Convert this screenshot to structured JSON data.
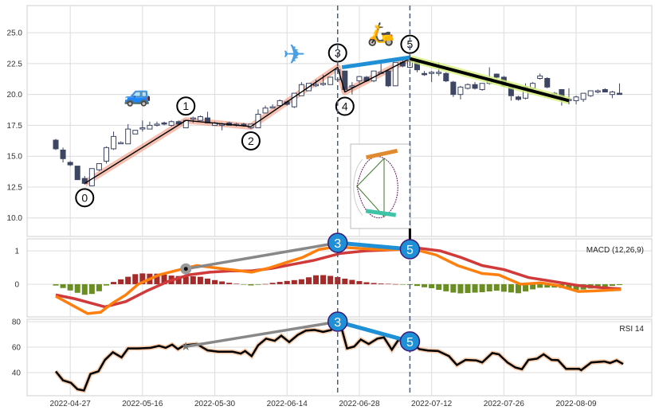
{
  "chart_data": {
    "type": "candlestick",
    "x_tick_labels": [
      {
        "index": 2,
        "label": "2022-04-27"
      },
      {
        "index": 12,
        "label": "2022-05-16"
      },
      {
        "index": 22,
        "label": "2022-05-30"
      },
      {
        "index": 32,
        "label": "2022-06-14"
      },
      {
        "index": 42,
        "label": "2022-06-28"
      },
      {
        "index": 52,
        "label": "2022-07-12"
      },
      {
        "index": 62,
        "label": "2022-07-26"
      },
      {
        "index": 72,
        "label": "2022-08-09"
      }
    ],
    "price_panel": {
      "ylim": [
        8.5,
        27.2
      ],
      "y_ticks": [
        "10.0",
        "12.5",
        "15.0",
        "17.5",
        "20.0",
        "22.5",
        "25.0"
      ],
      "candles_ohlc": [
        [
          16.3,
          16.4,
          15.5,
          15.6
        ],
        [
          15.5,
          15.7,
          14.5,
          14.8
        ],
        [
          14.5,
          14.6,
          14.2,
          14.3
        ],
        [
          14.2,
          14.2,
          13.1,
          13.1
        ],
        [
          13.2,
          13.4,
          12.7,
          12.8
        ],
        [
          12.6,
          14.0,
          12.6,
          14.0
        ],
        [
          13.9,
          14.4,
          13.8,
          14.4
        ],
        [
          14.6,
          15.8,
          14.4,
          15.7
        ],
        [
          15.6,
          17.0,
          15.5,
          16.6
        ],
        [
          16.1,
          16.2,
          16.0,
          16.1
        ],
        [
          16.0,
          17.6,
          16.0,
          17.2
        ],
        [
          16.8,
          17.1,
          16.8,
          17.1
        ],
        [
          17.3,
          17.9,
          17.0,
          17.3
        ],
        [
          17.2,
          17.8,
          17.2,
          17.5
        ],
        [
          17.6,
          17.8,
          17.4,
          17.6
        ],
        [
          17.7,
          17.8,
          17.5,
          17.6
        ],
        [
          17.5,
          17.9,
          17.4,
          17.8
        ],
        [
          17.8,
          17.9,
          17.6,
          17.6
        ],
        [
          17.3,
          17.9,
          17.3,
          17.9
        ],
        [
          18.1,
          18.2,
          17.7,
          18.1
        ],
        [
          17.9,
          18.3,
          17.9,
          18.2
        ],
        [
          18.1,
          18.6,
          17.7,
          17.7
        ],
        [
          17.5,
          17.8,
          17.5,
          17.7
        ],
        [
          17.6,
          17.7,
          17.1,
          17.6
        ],
        [
          17.7,
          17.8,
          17.5,
          17.5
        ],
        [
          17.6,
          17.7,
          17.4,
          17.6
        ],
        [
          17.6,
          17.7,
          17.4,
          17.5
        ],
        [
          17.3,
          17.6,
          17.2,
          17.6
        ],
        [
          17.3,
          18.8,
          17.3,
          18.4
        ],
        [
          18.5,
          19.1,
          18.5,
          18.9
        ],
        [
          19.0,
          19.2,
          18.9,
          19.0
        ],
        [
          19.1,
          19.6,
          19.0,
          19.5
        ],
        [
          19.4,
          19.5,
          19.1,
          19.2
        ],
        [
          19.0,
          20.1,
          18.9,
          20.1
        ],
        [
          19.9,
          21.0,
          19.9,
          20.8
        ],
        [
          20.3,
          20.9,
          20.3,
          20.9
        ],
        [
          20.8,
          21.2,
          20.6,
          20.8
        ],
        [
          20.8,
          21.6,
          20.7,
          20.9
        ],
        [
          20.8,
          21.4,
          20.8,
          21.4
        ],
        [
          21.2,
          22.0,
          21.1,
          22.0
        ],
        [
          21.9,
          21.9,
          20.3,
          20.4
        ],
        [
          20.7,
          21.0,
          20.0,
          20.7
        ],
        [
          21.1,
          21.5,
          20.9,
          21.45
        ],
        [
          21.4,
          21.5,
          21.0,
          21.1
        ],
        [
          21.1,
          21.9,
          21.0,
          21.9
        ],
        [
          21.8,
          22.6,
          21.7,
          21.8
        ],
        [
          21.9,
          22.0,
          20.6,
          20.7
        ],
        [
          20.7,
          22.6,
          20.7,
          22.6
        ],
        [
          22.6,
          22.8,
          22.2,
          22.3
        ],
        [
          22.2,
          23.3,
          22.1,
          22.7
        ],
        [
          22.6,
          22.7,
          21.8,
          22.0
        ],
        [
          21.7,
          21.9,
          21.5,
          21.6
        ],
        [
          21.8,
          21.9,
          21.0,
          21.8
        ],
        [
          21.8,
          22.6,
          21.5,
          21.8
        ],
        [
          21.7,
          21.8,
          21.0,
          21.1
        ],
        [
          21.0,
          21.1,
          19.8,
          20.0
        ],
        [
          20.0,
          20.7,
          19.6,
          20.6
        ],
        [
          20.5,
          20.9,
          20.4,
          20.8
        ],
        [
          20.8,
          21.0,
          20.4,
          20.5
        ],
        [
          20.4,
          20.9,
          20.3,
          20.9
        ],
        [
          20.9,
          22.2,
          20.8,
          21.3
        ],
        [
          21.65,
          21.7,
          21.3,
          21.4
        ],
        [
          21.4,
          21.5,
          20.6,
          20.7
        ],
        [
          20.6,
          20.7,
          19.5,
          19.9
        ],
        [
          19.8,
          19.9,
          19.5,
          19.6
        ],
        [
          19.7,
          20.9,
          19.6,
          20.6
        ],
        [
          20.5,
          21.0,
          20.4,
          20.9
        ],
        [
          21.3,
          21.7,
          21.2,
          21.5
        ],
        [
          21.3,
          21.4,
          20.5,
          20.6
        ],
        [
          20.1,
          20.2,
          19.8,
          20.1
        ],
        [
          20.4,
          20.4,
          19.1,
          19.8
        ],
        [
          19.6,
          20.5,
          19.2,
          19.6
        ],
        [
          19.5,
          19.9,
          19.2,
          19.8
        ],
        [
          19.6,
          20.1,
          19.4,
          20.1
        ],
        [
          19.9,
          20.3,
          19.8,
          20.3
        ],
        [
          20.2,
          20.4,
          20.1,
          20.3
        ],
        [
          20.4,
          20.5,
          20.2,
          20.2
        ],
        [
          20.0,
          20.3,
          19.7,
          20.2
        ],
        [
          20.1,
          20.9,
          20.0,
          20.0
        ]
      ],
      "pattern_points": [
        {
          "label": "0",
          "index": 4,
          "value": 12.8,
          "pos": "below"
        },
        {
          "label": "1",
          "index": 18,
          "value": 17.9,
          "pos": "above"
        },
        {
          "label": "2",
          "index": 27,
          "value": 17.4,
          "pos": "below"
        },
        {
          "label": "3",
          "index": 39,
          "value": 22.2,
          "pos": "above"
        },
        {
          "label": "4",
          "index": 40,
          "value": 20.2,
          "pos": "below"
        },
        {
          "label": "5",
          "index": 49,
          "value": 22.9,
          "pos": "above"
        }
      ],
      "highlight_segment": {
        "from": {
          "index": 39.6,
          "value": 22.2
        },
        "to": {
          "index": 49,
          "value": 23.0
        },
        "color": "#1f8fd6"
      },
      "trend_line": {
        "from": {
          "index": 49,
          "value": 22.9
        },
        "to": {
          "index": 71,
          "value": 19.5
        },
        "color": "#000000",
        "glow": "#d4f07a"
      },
      "stickers": [
        {
          "icon": "car-icon",
          "glyph": "🚙",
          "index": 11.3,
          "value": 19.4
        },
        {
          "icon": "airplane-icon",
          "glyph": "✈",
          "index": 33,
          "value": 22.5
        },
        {
          "icon": "scooter-icon",
          "glyph": "🛵",
          "index": 45,
          "value": 24.3
        }
      ],
      "vertical_markers": [
        39,
        49
      ]
    },
    "macd_panel": {
      "label": "MACD (12,26,9)",
      "ylim": [
        -0.98,
        1.36
      ],
      "y_ticks": [
        "0",
        "1"
      ],
      "macd": [
        [
          0,
          -0.36
        ],
        [
          2.7,
          -0.68
        ],
        [
          4.4,
          -0.88
        ],
        [
          6.2,
          -0.84
        ],
        [
          7.9,
          -0.56
        ],
        [
          9.7,
          -0.32
        ],
        [
          11.4,
          0
        ],
        [
          14.3,
          0.28
        ],
        [
          17.2,
          0.44
        ],
        [
          19.5,
          0.56
        ],
        [
          22.5,
          0.48
        ],
        [
          24.8,
          0.42
        ],
        [
          27.1,
          0.36
        ],
        [
          29.4,
          0.48
        ],
        [
          31.7,
          0.64
        ],
        [
          34.1,
          0.8
        ],
        [
          36.4,
          1.04
        ],
        [
          38.7,
          1.12
        ],
        [
          41.6,
          1.08
        ],
        [
          44.5,
          1.04
        ],
        [
          47.4,
          1.04
        ],
        [
          49.7,
          1.04
        ],
        [
          52.6,
          0.88
        ],
        [
          55.6,
          0.56
        ],
        [
          59,
          0.32
        ],
        [
          61.3,
          0.28
        ],
        [
          64.3,
          0
        ],
        [
          67.1,
          0.04
        ],
        [
          69.5,
          -0.04
        ],
        [
          72.3,
          -0.22
        ],
        [
          74.6,
          -0.2
        ],
        [
          78.2,
          -0.16
        ]
      ],
      "signal": [
        [
          0,
          -0.32
        ],
        [
          2.7,
          -0.44
        ],
        [
          6.8,
          -0.68
        ],
        [
          9.7,
          -0.52
        ],
        [
          12.6,
          -0.2
        ],
        [
          15.5,
          0.08
        ],
        [
          18.4,
          0.28
        ],
        [
          21.3,
          0.36
        ],
        [
          24.2,
          0.4
        ],
        [
          27.1,
          0.4
        ],
        [
          30,
          0.48
        ],
        [
          32.9,
          0.6
        ],
        [
          35.8,
          0.72
        ],
        [
          39.3,
          0.92
        ],
        [
          42.8,
          1.0
        ],
        [
          47.4,
          1.04
        ],
        [
          50.3,
          1.08
        ],
        [
          53.2,
          1.0
        ],
        [
          56.1,
          0.8
        ],
        [
          59,
          0.56
        ],
        [
          62,
          0.44
        ],
        [
          65.4,
          0.2
        ],
        [
          68.9,
          0.08
        ],
        [
          72.3,
          -0.04
        ],
        [
          75.3,
          -0.1
        ],
        [
          78.2,
          -0.14
        ]
      ],
      "colors": {
        "macd": "#ff7f0e",
        "signal": "#d03a3a",
        "hist_pos": "#a52a2a",
        "hist_neg": "#6b8e23"
      },
      "annotations": [
        {
          "label": "",
          "index": 18,
          "value": 0.46,
          "style": "gray-dot"
        },
        {
          "label": "3",
          "index": 39,
          "value": 1.24
        },
        {
          "label": "5",
          "index": 49,
          "value": 1.05
        }
      ]
    },
    "rsi_panel": {
      "label": "RSI 14",
      "ylim": [
        21.9,
        81.9
      ],
      "y_ticks": [
        "40",
        "60",
        "80"
      ],
      "rsi": [
        [
          0,
          41
        ],
        [
          1,
          34
        ],
        [
          2.1,
          32
        ],
        [
          3,
          27
        ],
        [
          3.9,
          26
        ],
        [
          4.8,
          39
        ],
        [
          5.9,
          41
        ],
        [
          6.8,
          50
        ],
        [
          7.9,
          56
        ],
        [
          9.1,
          52
        ],
        [
          10,
          59
        ],
        [
          11.4,
          59
        ],
        [
          13.1,
          59.5
        ],
        [
          14.3,
          61
        ],
        [
          15.2,
          59.5
        ],
        [
          16.1,
          62
        ],
        [
          16.9,
          58.5
        ],
        [
          17.8,
          61.5
        ],
        [
          19.5,
          62.5
        ],
        [
          21,
          57.5
        ],
        [
          22.5,
          56.4
        ],
        [
          24.5,
          56.4
        ],
        [
          25.6,
          55
        ],
        [
          26.2,
          57
        ],
        [
          27.1,
          53
        ],
        [
          28,
          61.5
        ],
        [
          29.1,
          66.7
        ],
        [
          30.3,
          65
        ],
        [
          31.2,
          69
        ],
        [
          32.3,
          64
        ],
        [
          33.5,
          69.7
        ],
        [
          34.6,
          73
        ],
        [
          35.8,
          73.5
        ],
        [
          37,
          72
        ],
        [
          38.1,
          73.5
        ],
        [
          39.3,
          80
        ],
        [
          40.3,
          59
        ],
        [
          41.3,
          60.5
        ],
        [
          42.2,
          66
        ],
        [
          43.3,
          62.5
        ],
        [
          44.5,
          66.7
        ],
        [
          45.4,
          67.7
        ],
        [
          46.5,
          58
        ],
        [
          47.4,
          65.6
        ],
        [
          48.3,
          65
        ],
        [
          49.4,
          62.5
        ],
        [
          50.3,
          58.5
        ],
        [
          51.5,
          57.4
        ],
        [
          52.9,
          57
        ],
        [
          54.4,
          53
        ],
        [
          55.5,
          46
        ],
        [
          56.7,
          50
        ],
        [
          58.2,
          49.6
        ],
        [
          59,
          48
        ],
        [
          60.4,
          55.4
        ],
        [
          61.3,
          54.4
        ],
        [
          62.5,
          48
        ],
        [
          63.6,
          44
        ],
        [
          64.5,
          42.7
        ],
        [
          65.4,
          50
        ],
        [
          66.6,
          51
        ],
        [
          67.5,
          54.4
        ],
        [
          68.6,
          50
        ],
        [
          69.5,
          49.8
        ],
        [
          70.6,
          43
        ],
        [
          72.4,
          43
        ],
        [
          72.7,
          42
        ],
        [
          74.1,
          48
        ],
        [
          75.9,
          48.8
        ],
        [
          76.7,
          47.6
        ],
        [
          77.6,
          49.6
        ],
        [
          78.5,
          46.8
        ]
      ],
      "annotations": [
        {
          "label": "",
          "index": 18,
          "value": 60.5,
          "style": "gray-star"
        },
        {
          "label": "3",
          "index": 39,
          "value": 80
        },
        {
          "label": "5",
          "index": 49,
          "value": 64.5
        }
      ]
    }
  }
}
